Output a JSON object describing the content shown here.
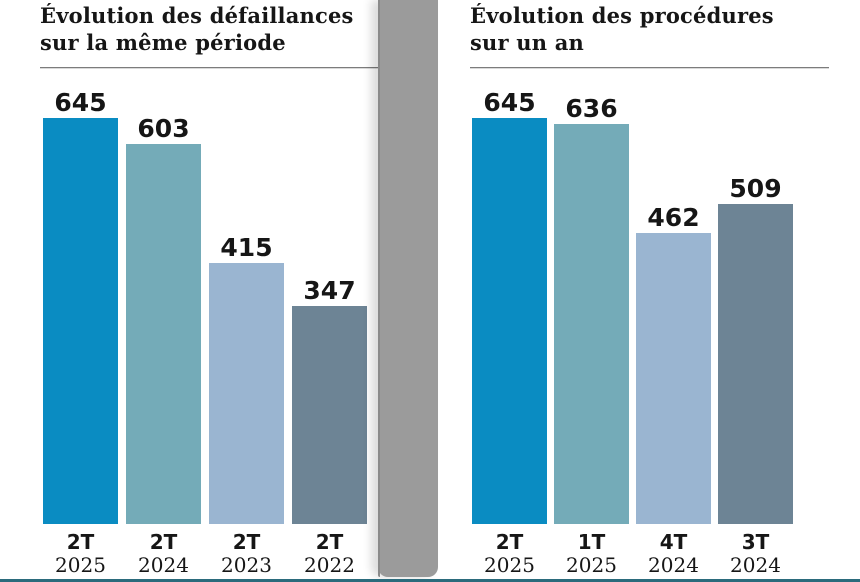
{
  "page": {
    "background": "#ffffff",
    "divider_color": "#9b9b9b",
    "bottom_line_color": "#2b6b7c",
    "text_color": "#161616",
    "rule_color": "#7c7c7c"
  },
  "chart_data": [
    {
      "type": "bar",
      "title_line1": "Évolution des défaillances",
      "title_line2": "sur la même période",
      "categories": [
        "2T 2025",
        "2T 2024",
        "2T 2023",
        "2T 2022"
      ],
      "tick_lines": [
        [
          "2T",
          "2025"
        ],
        [
          "2T",
          "2024"
        ],
        [
          "2T",
          "2023"
        ],
        [
          "2T",
          "2022"
        ]
      ],
      "values": [
        645,
        603,
        415,
        347
      ],
      "bar_colors": [
        "#0a8cc2",
        "#74abb8",
        "#9ab5d1",
        "#6d8495"
      ],
      "value_labels": [
        645,
        603,
        415,
        347
      ],
      "xlabel": "",
      "ylabel": "",
      "ylim": [
        0,
        645
      ],
      "grid": false,
      "legend": "none"
    },
    {
      "type": "bar",
      "title_line1": "Évolution des procédures",
      "title_line2": "sur un an",
      "categories": [
        "2T 2025",
        "1T 2025",
        "4T 2024",
        "3T 2024"
      ],
      "tick_lines": [
        [
          "2T",
          "2025"
        ],
        [
          "1T",
          "2025"
        ],
        [
          "4T",
          "2024"
        ],
        [
          "3T",
          "2024"
        ]
      ],
      "values": [
        645,
        636,
        462,
        509
      ],
      "bar_colors": [
        "#0a8cc2",
        "#74abb8",
        "#9ab5d1",
        "#6d8495"
      ],
      "value_labels": [
        645,
        636,
        462,
        509
      ],
      "xlabel": "",
      "ylabel": "",
      "ylim": [
        0,
        645
      ],
      "grid": false,
      "legend": "none"
    }
  ]
}
